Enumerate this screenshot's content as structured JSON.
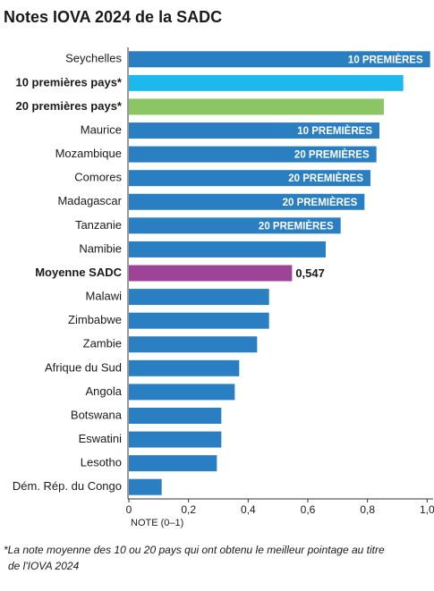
{
  "chart_data": {
    "type": "hbar",
    "title": "Notes IOVA 2024 de la SADC",
    "categories": [
      "Seychelles",
      "10 premières pays*",
      "20 premières pays*",
      "Maurice",
      "Mozambique",
      "Comores",
      "Madagascar",
      "Tanzanie",
      "Namibie",
      "Moyenne SADC",
      "Malawi",
      "Zimbabwe",
      "Zambie",
      "Afrique du Sud",
      "Angola",
      "Botswana",
      "Eswatini",
      "Lesotho",
      "Dém. Rép. du Congo"
    ],
    "values": [
      1.01,
      0.92,
      0.855,
      0.84,
      0.83,
      0.81,
      0.79,
      0.71,
      0.66,
      0.547,
      0.47,
      0.47,
      0.43,
      0.37,
      0.355,
      0.31,
      0.31,
      0.295,
      0.11
    ],
    "value_labels": [
      null,
      null,
      null,
      null,
      null,
      null,
      null,
      null,
      null,
      "0,547",
      null,
      null,
      null,
      null,
      null,
      null,
      null,
      null,
      null
    ],
    "bar_texts": [
      "10 PREMIÈRES",
      null,
      null,
      "10 PREMIÈRES",
      "20 PREMIÈRES",
      "20 PREMIÈRES",
      "20 PREMIÈRES",
      "20 PREMIÈRES",
      null,
      null,
      null,
      null,
      null,
      null,
      null,
      null,
      null,
      null,
      null
    ],
    "colors": [
      "#2a7fc3",
      "#1db8ec",
      "#8cc563",
      "#2a7fc3",
      "#2a7fc3",
      "#2a7fc3",
      "#2a7fc3",
      "#2a7fc3",
      "#2a7fc3",
      "#9d4499",
      "#2a7fc3",
      "#2a7fc3",
      "#2a7fc3",
      "#2a7fc3",
      "#2a7fc3",
      "#2a7fc3",
      "#2a7fc3",
      "#2a7fc3",
      "#2a7fc3"
    ],
    "bold": [
      false,
      true,
      true,
      false,
      false,
      false,
      false,
      false,
      false,
      true,
      false,
      false,
      false,
      false,
      false,
      false,
      false,
      false,
      false
    ],
    "xlim": [
      0,
      1.02
    ],
    "xticks": [
      0,
      {
        "value": 0.2,
        "label": "0,2"
      },
      {
        "value": 0.4,
        "label": "0,4"
      },
      {
        "value": 0.6,
        "label": "0,6"
      },
      {
        "value": 0.8,
        "label": "0,8"
      },
      {
        "value": 1.0,
        "label": "1,0"
      }
    ],
    "xlabel": "NOTE (0–1)",
    "footnote": [
      "*La note moyenne des 10 ou 20 pays qui ont obtenu le meilleur pointage au titre",
      "de l'IOVA 2024"
    ],
    "grid": false
  }
}
